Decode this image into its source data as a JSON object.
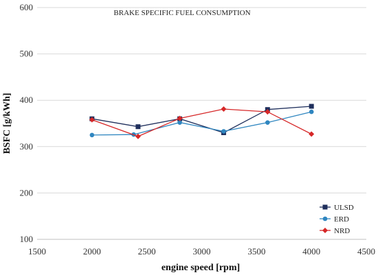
{
  "chart_data": {
    "type": "line",
    "title": "BRAKE SPECIFIC FUEL CONSUMPTION",
    "xlabel": "engine speed [rpm]",
    "ylabel": "BSFC [g/kWh]",
    "xlim": [
      1500,
      4500
    ],
    "ylim": [
      100,
      600
    ],
    "xticks": [
      1500,
      2000,
      2500,
      3000,
      3500,
      4000,
      4500
    ],
    "yticks": [
      100,
      200,
      300,
      400,
      500,
      600
    ],
    "grid": "horizontal",
    "legend_position": "bottom-right",
    "series": [
      {
        "name": "ULSD",
        "color": "#1f2f5c",
        "marker": "square",
        "x": [
          2000,
          2420,
          2800,
          3200,
          3600,
          4000
        ],
        "y": [
          360,
          343,
          360,
          330,
          380,
          387
        ]
      },
      {
        "name": "ERD",
        "color": "#2f86c0",
        "marker": "circle",
        "x": [
          2000,
          2380,
          2800,
          3200,
          3600,
          4000
        ],
        "y": [
          325,
          326,
          352,
          333,
          352,
          375
        ]
      },
      {
        "name": "NRD",
        "color": "#d62728",
        "marker": "diamond",
        "x": [
          2000,
          2420,
          2800,
          3200,
          3600,
          4000
        ],
        "y": [
          358,
          322,
          361,
          381,
          375,
          327
        ]
      }
    ]
  }
}
